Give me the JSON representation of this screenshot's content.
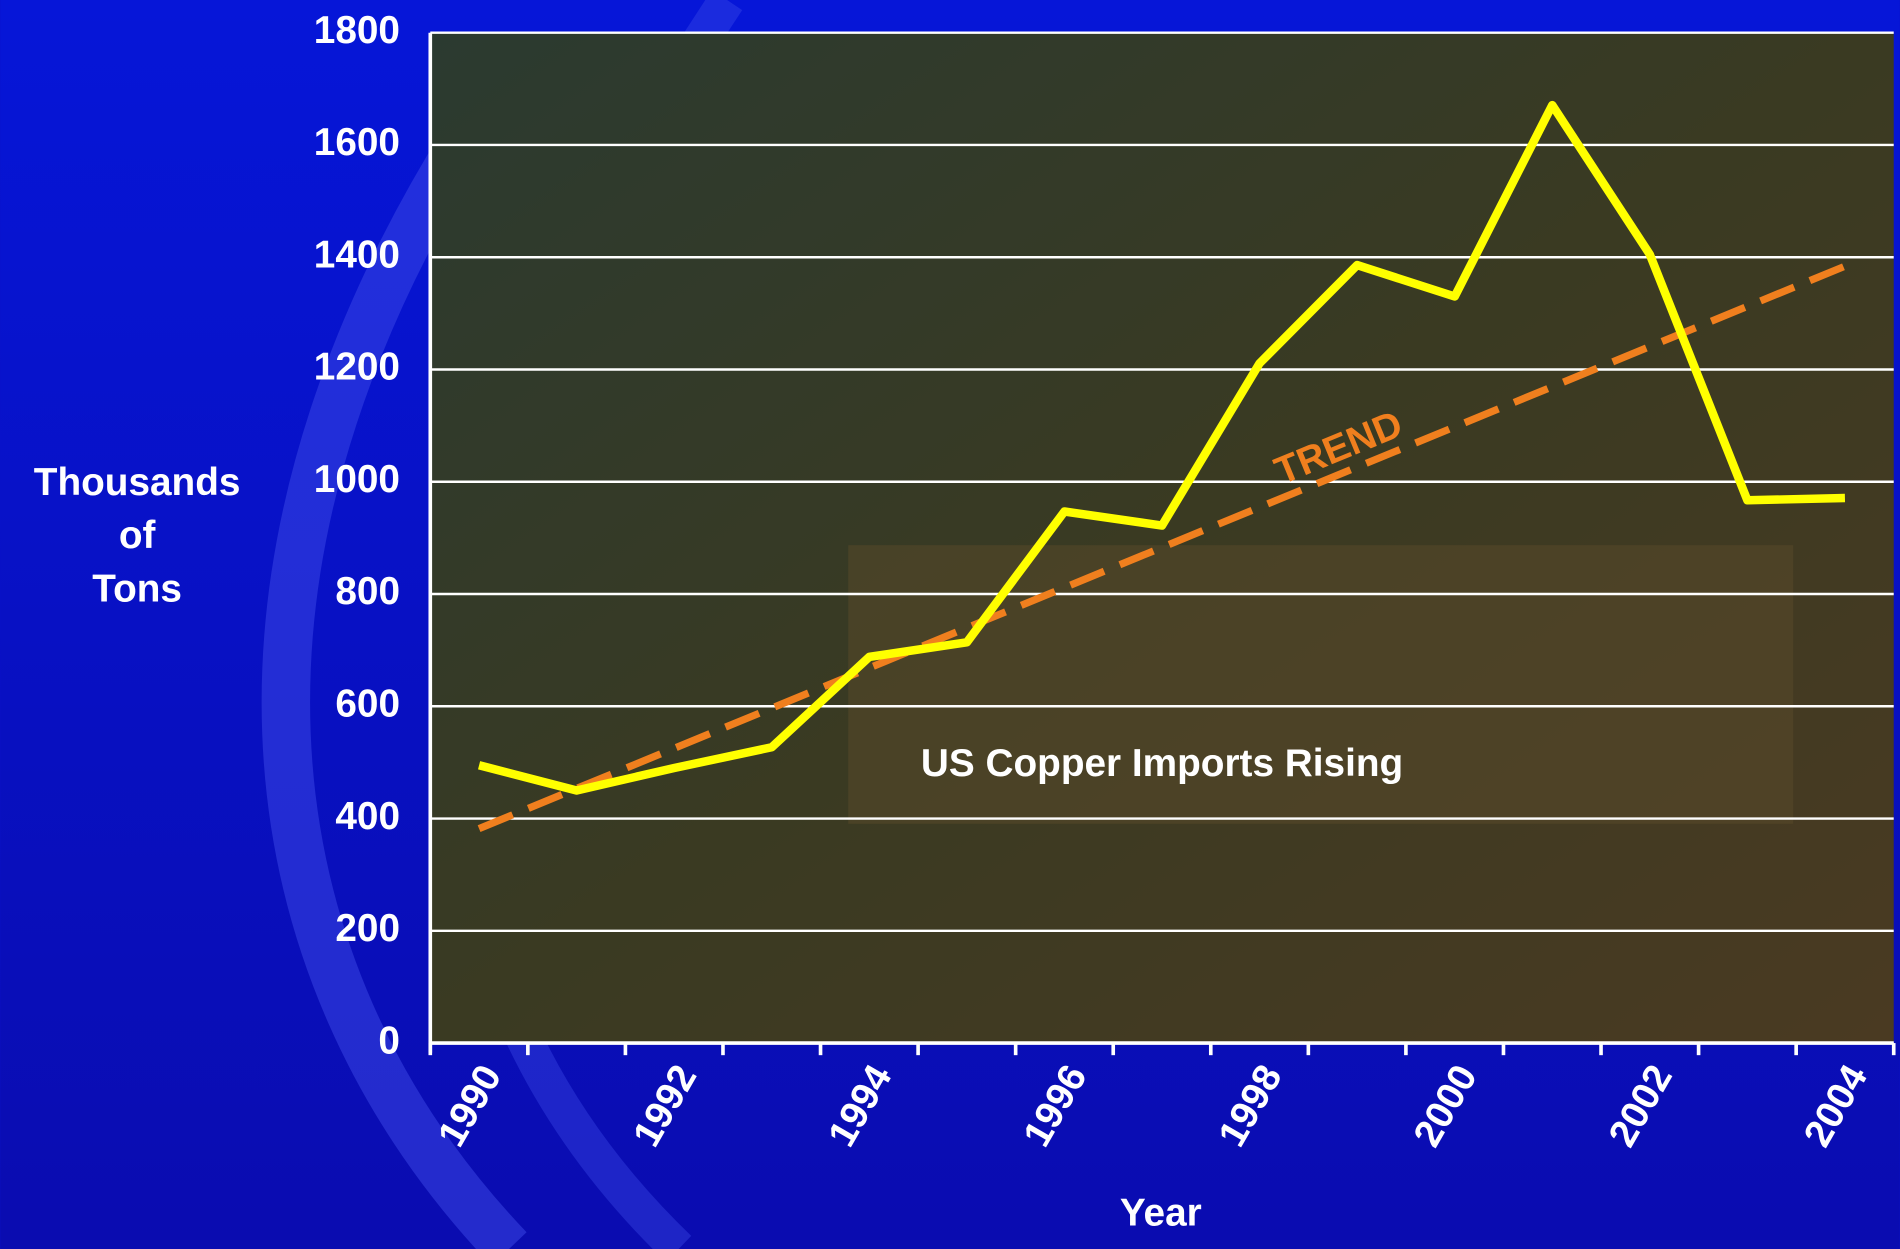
{
  "chart_data": {
    "type": "line",
    "annotation": "US Copper Imports Rising",
    "xlabel": "Year",
    "ylabel": [
      "Thousands",
      "of",
      "Tons"
    ],
    "categories": [
      "1990",
      null,
      "1992",
      null,
      "1994",
      null,
      "1996",
      null,
      "1998",
      null,
      "2000",
      null,
      "2002",
      null,
      "2004"
    ],
    "series": [
      {
        "color": "#ffff00",
        "values": [
          495,
          450,
          490,
          527,
          688,
          714,
          947,
          922,
          1211,
          1386,
          1330,
          1671,
          1405,
          967,
          971
        ]
      }
    ],
    "trend": {
      "label": "TREND",
      "color": "#f07f1e",
      "start": 382,
      "end": 1384
    },
    "ylim": [
      0,
      1800
    ],
    "yticks": [
      0,
      200,
      400,
      600,
      800,
      1000,
      1200,
      1400,
      1600,
      1800
    ],
    "grid": true
  }
}
